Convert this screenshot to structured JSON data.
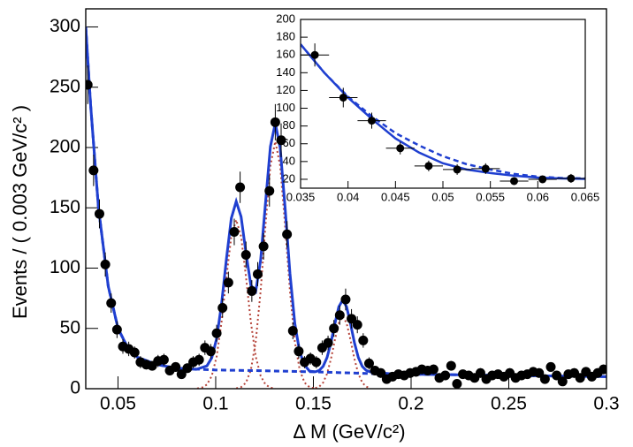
{
  "chart_data": [
    {
      "type": "scatter",
      "xlabel": "Δ M (GeV/c²)",
      "ylabel": "Events / ( 0.003 GeV/c² )",
      "xlim": [
        0.0335,
        0.3
      ],
      "ylim": [
        0,
        315
      ],
      "xticks": [
        0.05,
        0.1,
        0.15,
        0.2,
        0.25,
        0.3
      ],
      "yticks": [
        0,
        50,
        100,
        150,
        200,
        250,
        300
      ],
      "xerr": 0.0015,
      "points": {
        "color": "#000000",
        "x": [
          0.0345,
          0.0375,
          0.0405,
          0.0435,
          0.0465,
          0.0495,
          0.0525,
          0.0555,
          0.0585,
          0.0615,
          0.0645,
          0.0675,
          0.0705,
          0.0735,
          0.0765,
          0.0795,
          0.0825,
          0.0855,
          0.0885,
          0.0915,
          0.0945,
          0.0975,
          0.1005,
          0.1035,
          0.1065,
          0.1095,
          0.1125,
          0.1155,
          0.1185,
          0.1215,
          0.1245,
          0.1275,
          0.1305,
          0.1335,
          0.1365,
          0.1395,
          0.1425,
          0.1455,
          0.1485,
          0.1515,
          0.1545,
          0.1575,
          0.1605,
          0.1635,
          0.1665,
          0.1695,
          0.1725,
          0.1755,
          0.1785,
          0.1815,
          0.1845,
          0.1875,
          0.1905,
          0.1935,
          0.1965,
          0.1995,
          0.2025,
          0.2055,
          0.2085,
          0.2115,
          0.2145,
          0.2175,
          0.2205,
          0.2235,
          0.2265,
          0.2295,
          0.2325,
          0.2355,
          0.2385,
          0.2415,
          0.2445,
          0.2475,
          0.2505,
          0.2535,
          0.2565,
          0.2595,
          0.2625,
          0.2655,
          0.2685,
          0.2715,
          0.2745,
          0.2775,
          0.2805,
          0.2835,
          0.2865,
          0.2895,
          0.2925,
          0.2955,
          0.2985
        ],
        "values": [
          252,
          181,
          145,
          103,
          71,
          49,
          35,
          33,
          30,
          22,
          20,
          19,
          23,
          24,
          15,
          18,
          12,
          17,
          22,
          24,
          34,
          31,
          46,
          67,
          88,
          130,
          167,
          111,
          81,
          95,
          118,
          164,
          221,
          206,
          128,
          48,
          31,
          22,
          25,
          22,
          34,
          38,
          50,
          61,
          74,
          58,
          53,
          40,
          21,
          15,
          13,
          8,
          10,
          12,
          11,
          13,
          14,
          16,
          15,
          16,
          9,
          11,
          19,
          4,
          12,
          11,
          9,
          13,
          8,
          11,
          12,
          10,
          13,
          9,
          11,
          12,
          14,
          13,
          8,
          18,
          11,
          6,
          12,
          13,
          9,
          14,
          10,
          13,
          16
        ],
        "errors": [
          16,
          13,
          12,
          10,
          8,
          7,
          6,
          6,
          5,
          5,
          4,
          4,
          5,
          5,
          4,
          4,
          3,
          4,
          5,
          5,
          6,
          6,
          7,
          8,
          9,
          11,
          13,
          11,
          9,
          10,
          11,
          13,
          15,
          14,
          11,
          7,
          6,
          5,
          5,
          5,
          6,
          6,
          7,
          8,
          9,
          8,
          7,
          6,
          5,
          4,
          4,
          3,
          3,
          3,
          3,
          4,
          4,
          4,
          4,
          4,
          3,
          3,
          4,
          2,
          3,
          3,
          3,
          4,
          3,
          3,
          3,
          3,
          4,
          3,
          3,
          3,
          4,
          4,
          3,
          4,
          3,
          2,
          3,
          4,
          3,
          4,
          3,
          4,
          4
        ]
      },
      "series": [
        {
          "color": "#b5443a",
          "dash": "dotted",
          "x": [
            0.0905,
            0.093,
            0.0955,
            0.098,
            0.1005,
            0.103,
            0.1055,
            0.108,
            0.1105,
            0.113,
            0.1155,
            0.118,
            0.1205,
            0.123,
            0.1255,
            0.128,
            0.1305
          ],
          "values": [
            0.2,
            0.9,
            3.4,
            10.6,
            26.7,
            55.3,
            92.7,
            126.3,
            140,
            126.3,
            92.7,
            55.3,
            26.7,
            10.6,
            3.4,
            0.9,
            0.2
          ]
        },
        {
          "color": "#b5443a",
          "dash": "dotted",
          "x": [
            0.1105,
            0.113,
            0.1155,
            0.118,
            0.1205,
            0.123,
            0.1255,
            0.128,
            0.1305,
            0.133,
            0.1355,
            0.138,
            0.1405,
            0.143,
            0.1455,
            0.148,
            0.1505
          ],
          "values": [
            0.3,
            1.3,
            5.0,
            15.5,
            39.2,
            81.0,
            135.7,
            184.9,
            205,
            184.9,
            135.7,
            81.0,
            39.2,
            15.5,
            5.0,
            1.3,
            0.3
          ]
        },
        {
          "color": "#b5443a",
          "dash": "dotted",
          "x": [
            0.151,
            0.153,
            0.155,
            0.157,
            0.159,
            0.161,
            0.163,
            0.165,
            0.167,
            0.169,
            0.171,
            0.173,
            0.175,
            0.177,
            0.179
          ],
          "values": [
            0.5,
            1.7,
            5.1,
            12.4,
            24.7,
            40.4,
            54.4,
            60,
            54.4,
            40.4,
            24.7,
            12.4,
            5.1,
            1.7,
            0.5
          ]
        },
        {
          "color": "#1f3fd0",
          "dash": "dashed",
          "x": [
            0.0335,
            0.036,
            0.04,
            0.045,
            0.05,
            0.055,
            0.06,
            0.07,
            0.08,
            0.1,
            0.12,
            0.15,
            0.18,
            0.2,
            0.25,
            0.3
          ],
          "values": [
            300,
            235,
            150,
            85,
            50,
            34,
            26,
            20,
            17,
            15.5,
            15,
            14,
            12.5,
            12,
            11,
            10
          ]
        },
        {
          "color": "#1f3fd0",
          "dash": "solid",
          "x": [
            0.0335,
            0.036,
            0.04,
            0.045,
            0.05,
            0.055,
            0.06,
            0.07,
            0.08,
            0.09,
            0.0955,
            0.098,
            0.1005,
            0.103,
            0.1055,
            0.108,
            0.1105,
            0.113,
            0.1155,
            0.118,
            0.1205,
            0.123,
            0.1255,
            0.128,
            0.1305,
            0.133,
            0.1355,
            0.138,
            0.1405,
            0.143,
            0.1455,
            0.148,
            0.151,
            0.153,
            0.155,
            0.157,
            0.159,
            0.161,
            0.163,
            0.165,
            0.167,
            0.169,
            0.171,
            0.173,
            0.175,
            0.177,
            0.179,
            0.19,
            0.2,
            0.25,
            0.3
          ],
          "values": [
            300,
            235,
            150,
            85,
            50,
            34,
            26,
            20,
            17,
            16,
            18.9,
            25.6,
            41.7,
            70.3,
            107.7,
            141.3,
            155.3,
            142.6,
            112.7,
            85.8,
            80.9,
            106.6,
            154.1,
            200.8,
            220.2,
            199.7,
            150.5,
            95.8,
            54,
            30.3,
            19.6,
            14.6,
            14,
            15.2,
            18.6,
            25.9,
            38.2,
            53.9,
            67.9,
            73.5,
            67.9,
            53.9,
            38.2,
            25.9,
            18.6,
            15.2,
            14,
            12.3,
            12,
            11,
            10
          ]
        }
      ]
    },
    {
      "type": "scatter",
      "xlim": [
        0.035,
        0.065
      ],
      "ylim": [
        10,
        200
      ],
      "xticks": [
        0.035,
        0.04,
        0.045,
        0.05,
        0.055,
        0.06,
        0.065
      ],
      "yticks": [
        20,
        40,
        60,
        80,
        100,
        120,
        140,
        160,
        180,
        200
      ],
      "xerr": 0.0015,
      "points": {
        "color": "#000000",
        "x": [
          0.0365,
          0.0395,
          0.0425,
          0.0455,
          0.0485,
          0.0515,
          0.0545,
          0.0575,
          0.0605,
          0.0635
        ],
        "values": [
          160,
          112,
          86,
          55,
          35,
          31,
          32,
          18,
          20,
          21
        ],
        "errors": [
          13,
          11,
          9,
          7,
          6,
          6,
          6,
          4,
          4,
          5
        ]
      },
      "series": [
        {
          "color": "#1f3fd0",
          "dash": "dashed",
          "x": [
            0.035,
            0.0375,
            0.04,
            0.0425,
            0.045,
            0.0475,
            0.05,
            0.0525,
            0.055,
            0.0575,
            0.06,
            0.0625,
            0.065
          ],
          "values": [
            172,
            140,
            113,
            91,
            72,
            58,
            46,
            37,
            31,
            26,
            23,
            21.5,
            21
          ]
        },
        {
          "color": "#1f3fd0",
          "dash": "solid",
          "x": [
            0.035,
            0.0375,
            0.04,
            0.0425,
            0.045,
            0.0475,
            0.05,
            0.0525,
            0.055,
            0.0575,
            0.06,
            0.0625,
            0.065
          ],
          "values": [
            172,
            140,
            112,
            88,
            66,
            50,
            38,
            31,
            27,
            24,
            22,
            21,
            20.5
          ]
        }
      ]
    }
  ]
}
